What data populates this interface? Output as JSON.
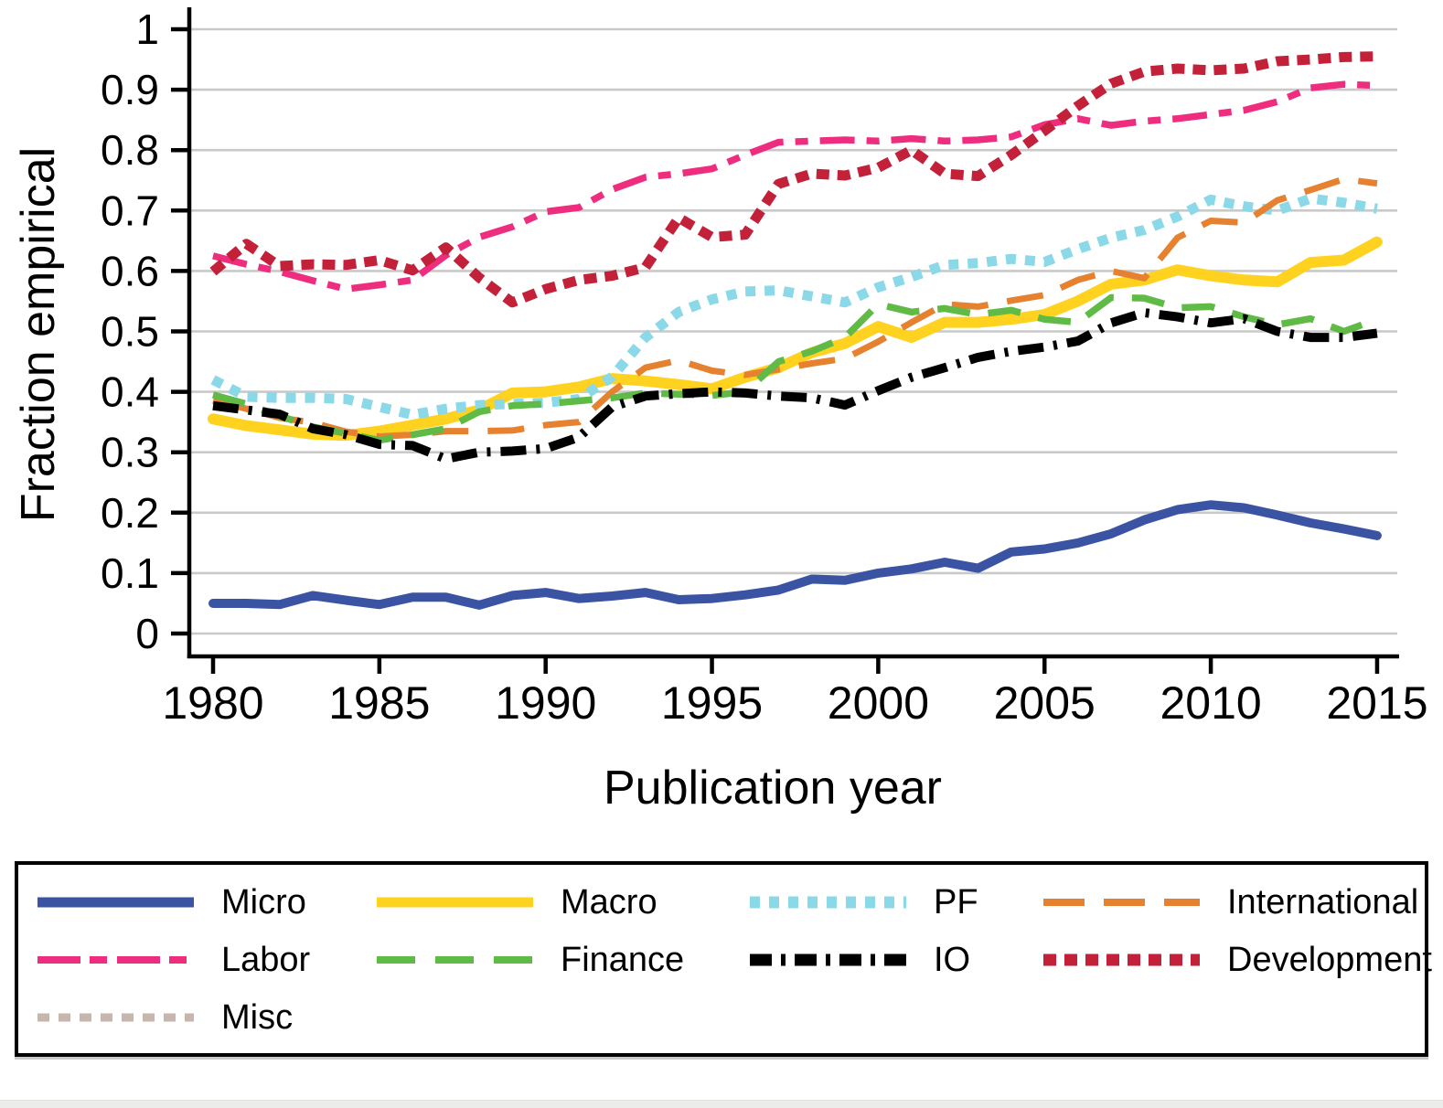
{
  "style": {
    "background": "#FFFFFF",
    "grid_color": "#C9C9C9",
    "axis_color": "#000000",
    "text_color": "#000000",
    "legend_border_color": "#000000",
    "bottom_strip_color": "#ECECEA"
  },
  "chart_data": {
    "type": "line",
    "title": "",
    "xlabel": "Publication year",
    "ylabel": "Fraction empirical",
    "xlim": [
      1980,
      2015
    ],
    "ylim": [
      0,
      1
    ],
    "grid": "horizontal",
    "legend_position": "below",
    "xticks": [
      1980,
      1985,
      1990,
      1995,
      2000,
      2005,
      2010,
      2015
    ],
    "xtick_labels": [
      "1980",
      "1985",
      "1990",
      "1995",
      "2000",
      "2005",
      "2010",
      "2015"
    ],
    "yticks": [
      0,
      0.1,
      0.2,
      0.3,
      0.4,
      0.5,
      0.6,
      0.7,
      0.8,
      0.9,
      1
    ],
    "ytick_labels": [
      "0",
      "0.1",
      "0.2",
      "0.3",
      "0.4",
      "0.5",
      "0.6",
      "0.7",
      "0.8",
      "0.9",
      "1"
    ],
    "x": [
      1980,
      1981,
      1982,
      1983,
      1984,
      1985,
      1986,
      1987,
      1988,
      1989,
      1990,
      1991,
      1992,
      1993,
      1994,
      1995,
      1996,
      1997,
      1998,
      1999,
      2000,
      2001,
      2002,
      2003,
      2004,
      2005,
      2006,
      2007,
      2008,
      2009,
      2010,
      2011,
      2012,
      2013,
      2014,
      2015
    ],
    "series": [
      {
        "id": "micro",
        "label": "Micro",
        "color": "#3A54A3",
        "width": 10,
        "dash": null,
        "legend": {
          "width": 11,
          "dash": null
        },
        "values": [
          0.05,
          0.05,
          0.048,
          0.063,
          0.055,
          0.048,
          0.06,
          0.06,
          0.047,
          0.063,
          0.068,
          0.058,
          0.062,
          0.068,
          0.056,
          0.058,
          0.064,
          0.072,
          0.09,
          0.088,
          0.1,
          0.107,
          0.118,
          0.108,
          0.135,
          0.14,
          0.15,
          0.165,
          0.188,
          0.205,
          0.213,
          0.208,
          0.196,
          0.183,
          0.173,
          0.162
        ]
      },
      {
        "id": "macro",
        "label": "Macro",
        "color": "#FFD21F",
        "width": 12,
        "dash": null,
        "legend": {
          "width": 11,
          "dash": null
        },
        "values": [
          0.355,
          0.344,
          0.337,
          0.33,
          0.328,
          0.335,
          0.345,
          0.355,
          0.37,
          0.398,
          0.4,
          0.408,
          0.422,
          0.418,
          0.412,
          0.405,
          0.424,
          0.44,
          0.465,
          0.48,
          0.508,
          0.49,
          0.515,
          0.515,
          0.52,
          0.528,
          0.55,
          0.578,
          0.585,
          0.602,
          0.592,
          0.585,
          0.582,
          0.614,
          0.618,
          0.648
        ]
      },
      {
        "id": "pf",
        "label": "PF",
        "color": "#8BD8E8",
        "width": 11,
        "dash": [
          11,
          10
        ],
        "legend": {
          "width": 13,
          "dash": [
            11,
            10
          ]
        },
        "values": [
          0.42,
          0.392,
          0.39,
          0.39,
          0.388,
          0.375,
          0.362,
          0.372,
          0.378,
          0.38,
          0.382,
          0.388,
          0.425,
          0.49,
          0.532,
          0.553,
          0.566,
          0.568,
          0.558,
          0.548,
          0.573,
          0.59,
          0.61,
          0.613,
          0.62,
          0.615,
          0.636,
          0.655,
          0.668,
          0.69,
          0.718,
          0.707,
          0.7,
          0.72,
          0.713,
          0.703
        ]
      },
      {
        "id": "international",
        "label": "International",
        "color": "#E5812F",
        "width": 7,
        "dash": [
          40,
          21
        ],
        "legend": {
          "width": 8,
          "dash": [
            45,
            21
          ]
        },
        "values": [
          0.385,
          0.372,
          0.357,
          0.349,
          0.334,
          0.326,
          0.329,
          0.335,
          0.335,
          0.336,
          0.345,
          0.35,
          0.4,
          0.44,
          0.452,
          0.435,
          0.428,
          0.437,
          0.447,
          0.455,
          0.483,
          0.515,
          0.545,
          0.541,
          0.551,
          0.56,
          0.585,
          0.6,
          0.588,
          0.655,
          0.683,
          0.68,
          0.717,
          0.734,
          0.752,
          0.745
        ]
      },
      {
        "id": "labor",
        "label": "Labor",
        "color": "#EE2D7F",
        "width": 7.5,
        "dash": [
          38,
          13,
          14,
          13
        ],
        "legend": {
          "width": 8,
          "dash": [
            47,
            10,
            19,
            11
          ]
        },
        "values": [
          0.625,
          0.611,
          0.599,
          0.584,
          0.57,
          0.577,
          0.585,
          0.626,
          0.656,
          0.673,
          0.698,
          0.705,
          0.735,
          0.755,
          0.761,
          0.769,
          0.792,
          0.813,
          0.815,
          0.817,
          0.815,
          0.819,
          0.815,
          0.817,
          0.822,
          0.842,
          0.852,
          0.841,
          0.848,
          0.852,
          0.859,
          0.866,
          0.88,
          0.903,
          0.909,
          0.907
        ]
      },
      {
        "id": "finance",
        "label": "Finance",
        "color": "#5FBB46",
        "width": 7.5,
        "dash": [
          36,
          20
        ],
        "legend": {
          "width": 8,
          "dash": [
            42,
            22
          ]
        },
        "values": [
          0.395,
          0.38,
          0.36,
          0.342,
          0.331,
          0.32,
          0.329,
          0.339,
          0.367,
          0.377,
          0.38,
          0.385,
          0.39,
          0.398,
          0.396,
          0.394,
          0.4,
          0.45,
          0.467,
          0.49,
          0.545,
          0.532,
          0.538,
          0.528,
          0.535,
          0.52,
          0.515,
          0.556,
          0.555,
          0.539,
          0.541,
          0.524,
          0.511,
          0.521,
          0.5,
          0.52
        ]
      },
      {
        "id": "io",
        "label": "IO",
        "color": "#000000",
        "width": 10,
        "dash": [
          28,
          11,
          4,
          11
        ],
        "legend": {
          "width": 13,
          "dash": [
            24,
            10,
            5,
            10
          ]
        },
        "values": [
          0.377,
          0.37,
          0.363,
          0.339,
          0.329,
          0.313,
          0.311,
          0.289,
          0.3,
          0.302,
          0.306,
          0.325,
          0.375,
          0.393,
          0.397,
          0.4,
          0.398,
          0.393,
          0.39,
          0.378,
          0.402,
          0.424,
          0.44,
          0.457,
          0.467,
          0.474,
          0.484,
          0.514,
          0.531,
          0.524,
          0.514,
          0.521,
          0.5,
          0.49,
          0.49,
          0.497
        ]
      },
      {
        "id": "development",
        "label": "Development",
        "color": "#C32139",
        "width": 11,
        "dash": [
          14,
          9
        ],
        "legend": {
          "width": 13,
          "dash": [
            14,
            9
          ]
        },
        "values": [
          0.599,
          0.645,
          0.608,
          0.611,
          0.61,
          0.618,
          0.601,
          0.639,
          0.589,
          0.548,
          0.57,
          0.585,
          0.592,
          0.606,
          0.688,
          0.656,
          0.66,
          0.744,
          0.761,
          0.758,
          0.771,
          0.8,
          0.761,
          0.757,
          0.792,
          0.832,
          0.873,
          0.91,
          0.93,
          0.935,
          0.932,
          0.935,
          0.947,
          0.95,
          0.954,
          0.955
        ]
      },
      {
        "id": "misc",
        "label": "Misc",
        "color": "#C6B6AD",
        "width": 8,
        "dash": [
          13,
          10
        ],
        "legend": {
          "width": 9,
          "dash": [
            13,
            10
          ]
        },
        "values": []
      }
    ]
  }
}
